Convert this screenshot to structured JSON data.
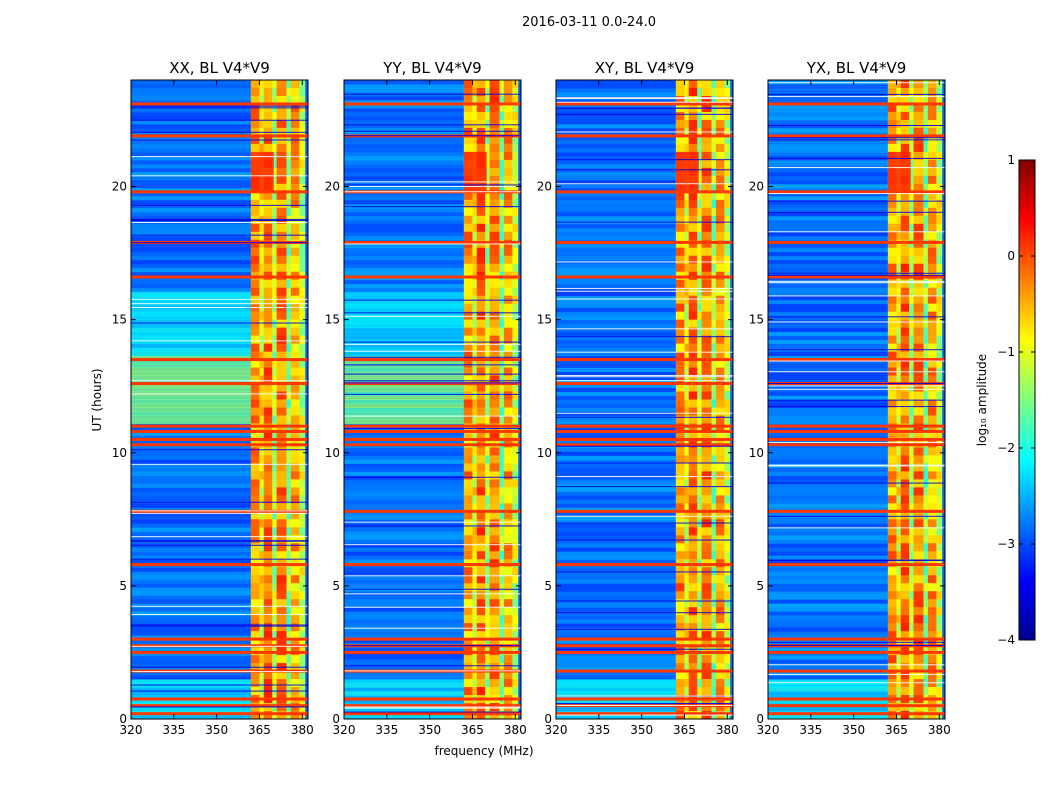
{
  "chart_data": {
    "type": "heatmap",
    "suptitle": "2016-03-11 0.0-24.0",
    "xlabel": "frequency (MHz)",
    "ylabel": "UT (hours)",
    "xlim": [
      320,
      382
    ],
    "ylim": [
      0,
      24
    ],
    "xticks": [
      320,
      335,
      350,
      365,
      380
    ],
    "yticks": [
      0,
      5,
      10,
      15,
      20
    ],
    "panels": [
      {
        "title": "XX, BL V4*V9",
        "polarization": "XX"
      },
      {
        "title": "YY, BL V4*V9",
        "polarization": "YY"
      },
      {
        "title": "XY, BL V4*V9",
        "polarization": "XY"
      },
      {
        "title": "YX, BL V4*V9",
        "polarization": "YX"
      }
    ],
    "colorbar": {
      "label": "log₁₀ amplitude",
      "range": [
        -4,
        1
      ],
      "ticks": [
        "1",
        "0",
        "−1",
        "−2",
        "−3",
        "−4"
      ],
      "colormap": "jet"
    },
    "features": {
      "strong_band_mhz": [
        362,
        381
      ],
      "rfi_hours": [
        0.2,
        0.5,
        0.75,
        1.8,
        2.5,
        2.75,
        3.0,
        5.8,
        7.8,
        10.3,
        10.5,
        10.8,
        11.0,
        12.6,
        13.5,
        16.6,
        17.9,
        19.8,
        21.9,
        23.1
      ],
      "cross_pol": [
        "XY",
        "YX"
      ]
    }
  }
}
